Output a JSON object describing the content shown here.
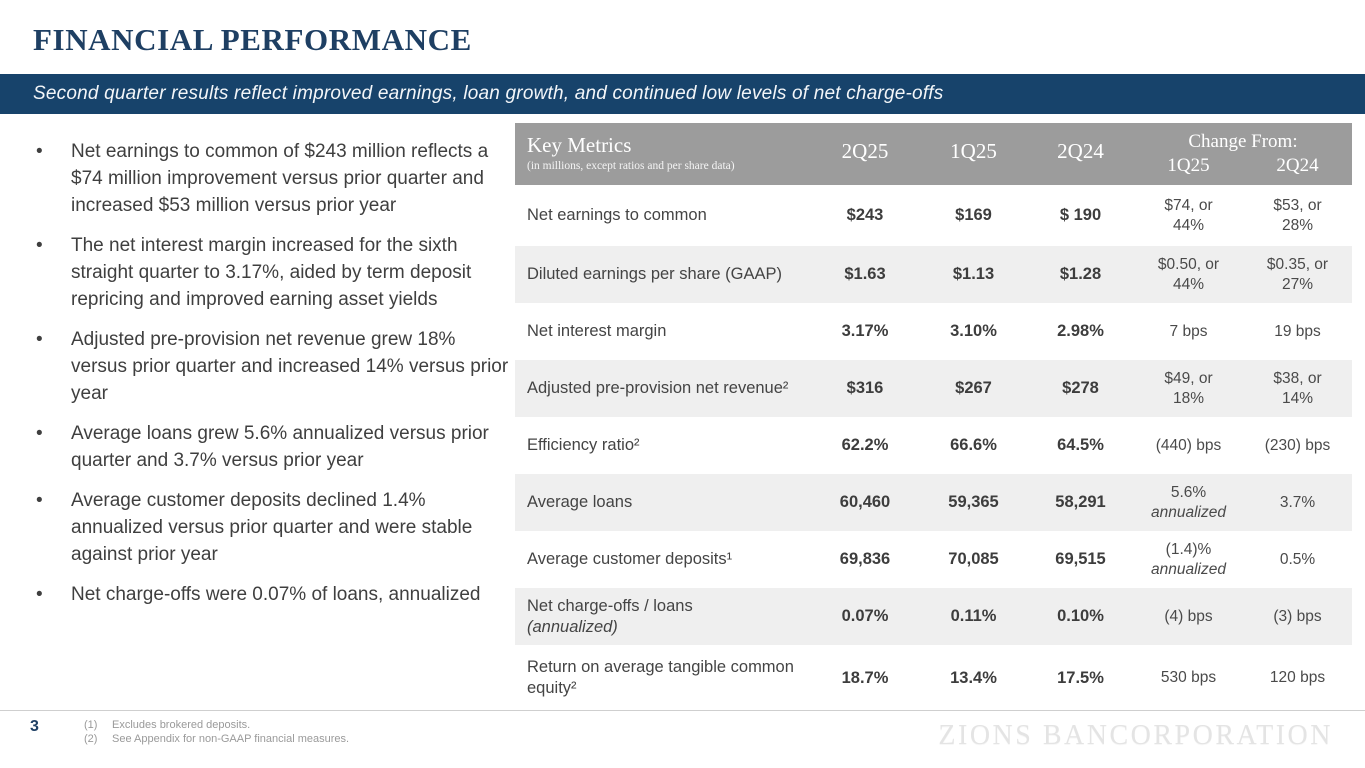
{
  "slide": {
    "title": "FINANCIAL PERFORMANCE",
    "banner": "Second quarter results reflect improved earnings, loan growth, and continued low levels of net charge-offs",
    "page_number": "3",
    "watermark": "ZIONS BANCORPORATION"
  },
  "bullets": [
    "Net earnings to common of $243 million reflects a $74 million improvement versus prior quarter and increased $53 million versus prior year",
    "The net interest margin increased for the sixth straight quarter to 3.17%, aided by term deposit repricing and improved earning asset yields",
    "Adjusted pre-provision net revenue grew 18% versus prior quarter and increased 14% versus prior year",
    "Average loans grew 5.6% annualized versus prior quarter and 3.7% versus prior year",
    "Average customer deposits declined 1.4% annualized versus prior quarter and were stable against prior year",
    "Net charge-offs were 0.07% of loans, annualized"
  ],
  "table": {
    "title": "Key Metrics",
    "subtitle": "(in millions, except ratios and per share data)",
    "period_columns": [
      "2Q25",
      "1Q25",
      "2Q24"
    ],
    "change_header": "Change From:",
    "change_columns": [
      "1Q25",
      "2Q24"
    ],
    "rows": [
      {
        "label": "Net earnings to common",
        "v0": "$243",
        "v1": "$169",
        "v2": "$ 190",
        "c0": "$74, or\n44%",
        "c1": "$53, or\n28%"
      },
      {
        "label": "Diluted earnings per share (GAAP)",
        "v0": "$1.63",
        "v1": "$1.13",
        "v2": "$1.28",
        "c0": "$0.50, or\n44%",
        "c1": "$0.35, or\n27%"
      },
      {
        "label": "Net interest margin",
        "v0": "3.17%",
        "v1": "3.10%",
        "v2": "2.98%",
        "c0": "7 bps",
        "c1": "19 bps"
      },
      {
        "label": "Adjusted pre-provision net revenue²",
        "v0": "$316",
        "v1": "$267",
        "v2": "$278",
        "c0": "$49, or\n18%",
        "c1": "$38, or\n14%"
      },
      {
        "label": "Efficiency ratio²",
        "v0": "62.2%",
        "v1": "66.6%",
        "v2": "64.5%",
        "c0": "(440) bps",
        "c1": "(230) bps"
      },
      {
        "label": "Average loans",
        "v0": "60,460",
        "v1": "59,365",
        "v2": "58,291",
        "c0": "5.6%",
        "c0_italic": "annualized",
        "c1": "3.7%"
      },
      {
        "label": "Average customer deposits¹",
        "v0": "69,836",
        "v1": "70,085",
        "v2": "69,515",
        "c0": "(1.4)%",
        "c0_italic": "annualized",
        "c1": "0.5%"
      },
      {
        "label": "Net charge-offs / loans",
        "label_note": "(annualized)",
        "v0": "0.07%",
        "v1": "0.11%",
        "v2": "0.10%",
        "c0": "(4) bps",
        "c1": "(3) bps"
      },
      {
        "label": "Return on average tangible common equity²",
        "v0": "18.7%",
        "v1": "13.4%",
        "v2": "17.5%",
        "c0": "530 bps",
        "c1": "120 bps"
      }
    ]
  },
  "footnotes": [
    {
      "marker": "(1)",
      "text": "Excludes brokered deposits."
    },
    {
      "marker": "(2)",
      "text": "See Appendix for non-GAAP financial measures."
    }
  ],
  "colors": {
    "banner_navy": "#17436B",
    "title_navy": "#1E3F63",
    "table_header_gray": "#9C9C9C",
    "row_shade_gray": "#EFEFEF",
    "body_text": "#3F3F3F",
    "footnote_gray": "#9A9A9A",
    "watermark_gray": "#E4E4E4"
  }
}
